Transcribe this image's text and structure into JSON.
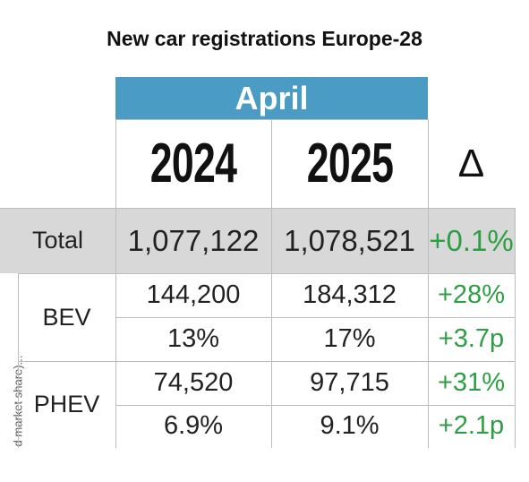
{
  "title": "New car registrations Europe-28",
  "header": {
    "month": "April",
    "years": [
      "2024",
      "2025"
    ],
    "delta": "Δ"
  },
  "side_label": "d market share)...",
  "table": {
    "rows": [
      {
        "label": "Total",
        "cells": [
          [
            "1,077,122",
            "1,078,521",
            "+0.1%"
          ]
        ]
      },
      {
        "label": "BEV",
        "cells": [
          [
            "144,200",
            "184,312",
            "+28%"
          ],
          [
            "13%",
            "17%",
            "+3.7p"
          ]
        ]
      },
      {
        "label": "PHEV",
        "cells": [
          [
            "74,520",
            "97,715",
            "+31%"
          ],
          [
            "6.9%",
            "9.1%",
            "+2.1p"
          ]
        ]
      }
    ]
  }
}
